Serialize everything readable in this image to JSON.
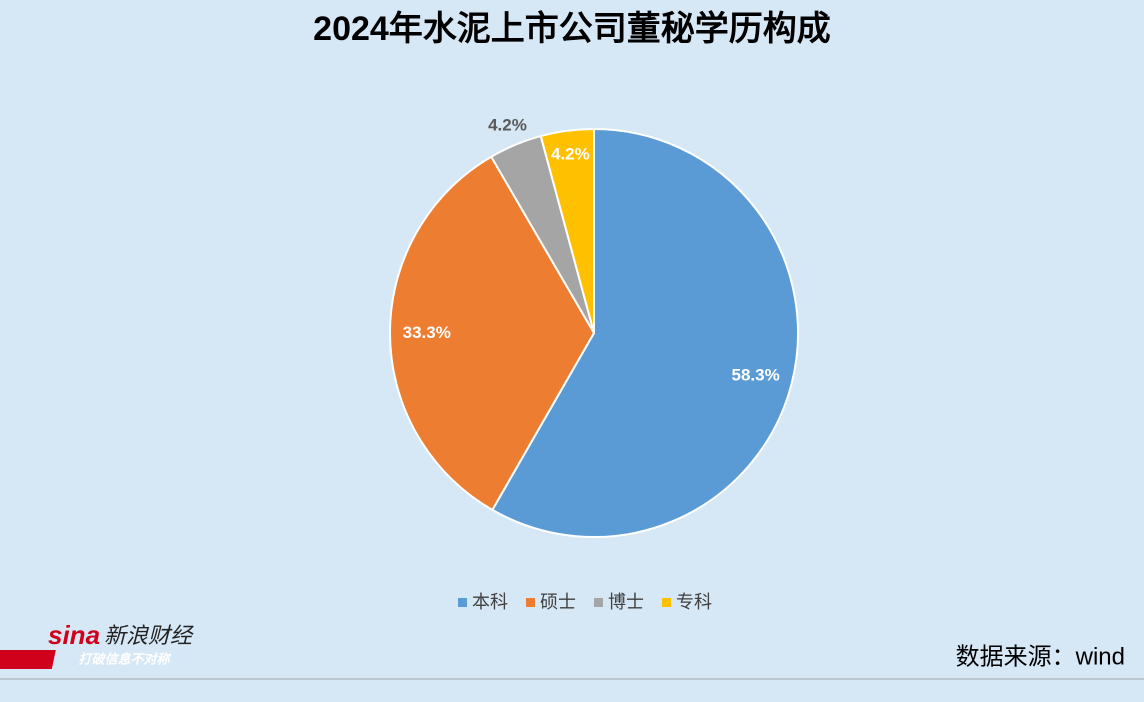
{
  "chart_data": {
    "type": "pie",
    "title": "2024年水泥上市公司董秘学历构成",
    "categories": [
      "本科",
      "硕士",
      "博士",
      "专科"
    ],
    "values": [
      58.3,
      33.3,
      4.2,
      4.2
    ],
    "value_labels": [
      "58.3%",
      "33.3%",
      "4.2%",
      "4.2%"
    ],
    "colors": [
      "#5b9bd5",
      "#ed7d31",
      "#a5a5a5",
      "#ffc000"
    ],
    "legend": "bottom",
    "source": "数据来源：wind"
  },
  "logo": {
    "brand": "sina",
    "name": "新浪财经",
    "slogan": "打破信息不对称"
  }
}
